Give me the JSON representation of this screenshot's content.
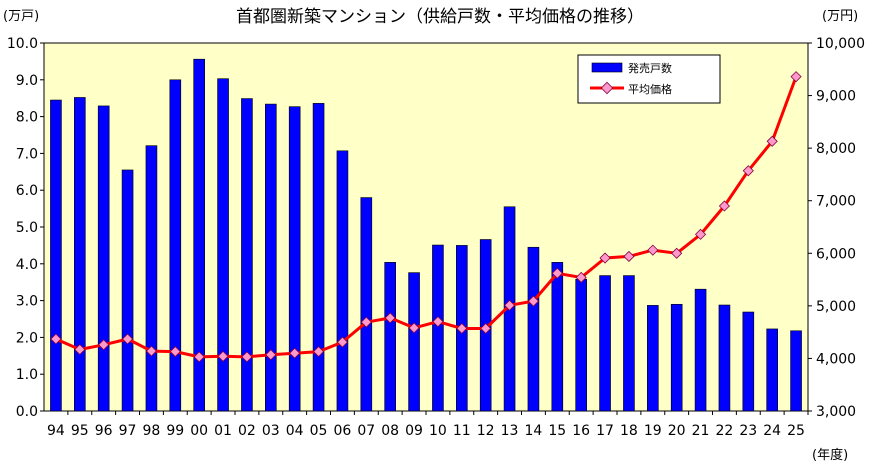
{
  "chart_data": {
    "type": "bar+line",
    "title": "首都圏新築マンション（供給戸数・平均価格の推移）",
    "left_unit": "(万戸)",
    "right_unit": "(万円)",
    "x_unit": "(年度)",
    "categories": [
      "94",
      "95",
      "96",
      "97",
      "98",
      "99",
      "00",
      "01",
      "02",
      "03",
      "04",
      "05",
      "06",
      "07",
      "08",
      "09",
      "10",
      "11",
      "12",
      "13",
      "14",
      "15",
      "16",
      "17",
      "18",
      "19",
      "20",
      "21",
      "22",
      "23",
      "24",
      "25"
    ],
    "y_left": {
      "min": 0,
      "max": 10,
      "ticks": [
        "0.0",
        "1.0",
        "2.0",
        "3.0",
        "4.0",
        "5.0",
        "6.0",
        "7.0",
        "8.0",
        "9.0",
        "10.0"
      ]
    },
    "y_right": {
      "min": 3000,
      "max": 10000,
      "ticks": [
        "3,000",
        "4,000",
        "5,000",
        "6,000",
        "7,000",
        "8,000",
        "9,000",
        "10,000"
      ]
    },
    "series": [
      {
        "name": "発売戸数",
        "kind": "bar",
        "axis": "left",
        "color": "#0000ff",
        "values": [
          8.45,
          8.52,
          8.29,
          6.55,
          7.21,
          9.0,
          9.56,
          9.03,
          8.49,
          8.34,
          8.27,
          8.36,
          7.07,
          5.8,
          4.04,
          3.76,
          4.51,
          4.5,
          4.66,
          5.55,
          4.45,
          4.04,
          3.58,
          3.68,
          3.68,
          2.87,
          2.9,
          3.31,
          2.88,
          2.69,
          2.23,
          2.18
        ]
      },
      {
        "name": "平均価格",
        "kind": "line",
        "axis": "right",
        "color": "#ff0000",
        "marker_color": "#ff99cc",
        "values": [
          4370,
          4170,
          4260,
          4370,
          4140,
          4130,
          4030,
          4040,
          4030,
          4070,
          4100,
          4130,
          4310,
          4690,
          4770,
          4580,
          4700,
          4570,
          4570,
          5010,
          5090,
          5620,
          5540,
          5910,
          5940,
          6060,
          6000,
          6360,
          6900,
          7570,
          8130,
          9360
        ]
      }
    ],
    "legend": {
      "position": "top-right"
    }
  }
}
